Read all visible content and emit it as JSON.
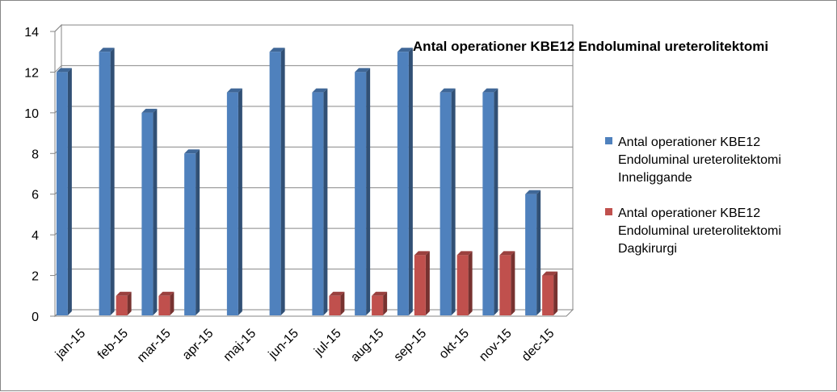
{
  "chart_data": {
    "type": "bar",
    "title": "Antal operationer KBE12 Endoluminal ureterolitektomi",
    "categories": [
      "jan-15",
      "feb-15",
      "mar-15",
      "apr-15",
      "maj-15",
      "jun-15",
      "jul-15",
      "aug-15",
      "sep-15",
      "okt-15",
      "nov-15",
      "dec-15"
    ],
    "series": [
      {
        "name": "Antal operationer KBE12 Endoluminal ureterolitektomi Inneliggande",
        "legend_lines": [
          "Antal operationer KBE12",
          "Endoluminal ureterolitektomi",
          "Inneliggande"
        ],
        "values": [
          12,
          13,
          10,
          8,
          11,
          13,
          11,
          12,
          13,
          11,
          11,
          6
        ],
        "color": "#4F81BD"
      },
      {
        "name": "Antal operationer KBE12 Endoluminal ureterolitektomi Dagkirurgi",
        "legend_lines": [
          "Antal operationer KBE12",
          "Endoluminal ureterolitektomi",
          "Dagkirurgi"
        ],
        "values": [
          0,
          1,
          1,
          0,
          0,
          0,
          1,
          1,
          3,
          3,
          3,
          2
        ],
        "color": "#C0504D"
      }
    ],
    "ylim": [
      0,
      14
    ],
    "yticks": [
      0,
      2,
      4,
      6,
      8,
      10,
      12,
      14
    ],
    "grid": true,
    "legend_position": "right",
    "xlabel": "",
    "ylabel": ""
  }
}
